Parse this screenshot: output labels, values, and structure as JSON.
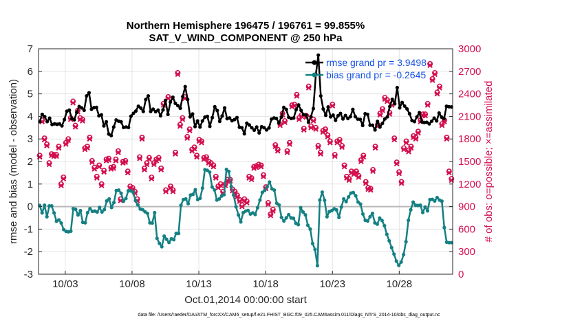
{
  "chart_data": {
    "type": "line",
    "title": "Northern Hemisphere 196475 / 196761 = 99.855%",
    "subtitle": "SAT_V_WIND_COMPONENT @ 250 hPa",
    "xlabel": "Oct.01,2014 00:00:00 start",
    "ylabel": "rmse and bias (model - observation)",
    "ylabel_right": "# of obs: o=possible; ×=assimilated",
    "footnote": "data file: /Users/raeder/DAI/ATM_forcXX/CAM6_setup/f.e21.FHIST_BGC.f09_025.CAM6assim.011/Diags_NTrS_2014-10/obs_diag_output.nc",
    "x_ticks": [
      "10/03",
      "10/08",
      "10/13",
      "10/18",
      "10/23",
      "10/28"
    ],
    "x_tick_days": [
      3,
      8,
      13,
      18,
      23,
      28
    ],
    "xlim": [
      1.0,
      32.0
    ],
    "ylim": [
      -3,
      7
    ],
    "y_ticks": [
      "-3",
      "-2",
      "-1",
      "0",
      "1",
      "2",
      "3",
      "4",
      "5",
      "6",
      "7"
    ],
    "ylim_right": [
      0,
      3000
    ],
    "y2_ticks": [
      "0",
      "300",
      "600",
      "900",
      "1200",
      "1500",
      "1800",
      "2100",
      "2400",
      "2700",
      "3000"
    ],
    "grid": true,
    "zero_line": 0,
    "legend_position": "top-right",
    "series": [
      {
        "name": "rmse grand pr = 3.9498",
        "color": "#000000",
        "marker": "circle",
        "values": [
          3.77,
          4.09,
          3.99,
          3.77,
          3.92,
          3.64,
          3.67,
          3.65,
          3.67,
          3.58,
          3.86,
          4.23,
          4.28,
          3.91,
          3.85,
          4.18,
          4.44,
          4.38,
          4.27,
          4.91,
          5.05,
          4.32,
          4.39,
          4.4,
          4.03,
          4.07,
          3.58,
          3.76,
          3.22,
          3.15,
          3.53,
          3.84,
          3.79,
          3.76,
          3.51,
          3.53,
          3.51,
          4.01,
          4.14,
          4.24,
          4.45,
          4.37,
          4.22,
          4.75,
          4.91,
          4.22,
          4.32,
          4.21,
          4.28,
          4.03,
          4.29,
          4.71,
          4.09,
          4.64,
          4.85,
          4.58,
          4.48,
          4.36,
          4.88,
          5.32,
          4.75,
          3.98,
          4.11,
          3.55,
          3.8,
          3.53,
          3.8,
          3.97,
          4.0,
          3.56,
          3.95,
          4.43,
          4.26,
          3.78,
          4.02,
          4.38,
          3.9,
          3.93,
          3.81,
          3.86,
          3.95,
          3.52,
          3.5,
          3.23,
          3.7,
          3.62,
          3.5,
          3.39,
          3.53,
          3.27,
          3.54,
          3.5,
          3.4,
          3.49,
          3.88,
          3.93,
          3.91,
          3.71,
          3.97,
          4.4,
          4.31,
          3.96,
          3.91,
          3.93,
          4.3,
          4.51,
          4.27,
          4.08,
          4.06,
          3.74,
          3.99,
          4.35,
          5.86,
          6.72,
          4.91,
          4.33,
          4.05,
          4.42,
          3.98,
          4.06,
          3.83,
          4.03,
          4.13,
          3.89,
          4.04,
          3.91,
          3.99,
          4.31,
          3.99,
          3.88,
          3.87,
          3.6,
          4.12,
          4.09,
          3.61,
          3.61,
          3.4,
          3.78,
          3.53,
          3.69,
          3.89,
          3.98,
          4.44,
          4.76,
          4.56,
          5.28,
          4.38,
          4.62,
          4.46,
          4.33,
          4.12,
          3.82,
          3.77,
          3.98,
          4.17,
          3.76,
          3.73,
          3.74,
          3.67,
          3.79,
          3.92,
          3.8,
          4.15,
          3.97,
          3.9,
          4.45,
          4.43,
          4.42
        ]
      },
      {
        "name": "bias grand pr = -0.2645",
        "color": "#148083",
        "marker": "circle",
        "values": [
          0.05,
          -0.28,
          0.06,
          -0.45,
          0.03,
          0.03,
          -0.28,
          -0.65,
          -0.59,
          -0.73,
          -1.02,
          -1.1,
          -1.12,
          -1.09,
          -0.09,
          -0.12,
          -0.37,
          -0.18,
          -0.7,
          -0.72,
          -0.27,
          -0.09,
          -0.21,
          -0.2,
          -0.24,
          -0.04,
          -0.24,
          -0.13,
          0.25,
          0.34,
          -0.04,
          0.18,
          0.71,
          0.73,
          0.59,
          0.24,
          0.36,
          0.7,
          0.7,
          0.64,
          0.27,
          0.08,
          -0.11,
          -0.14,
          -0.23,
          -0.3,
          -0.72,
          -0.73,
          -0.27,
          -1.41,
          -1.63,
          -1.78,
          -1.31,
          -1.45,
          -1.59,
          -1.43,
          -1.47,
          -1.19,
          -1.19,
          0.06,
          0.31,
          0.34,
          0.13,
          0.51,
          0.54,
          0.75,
          0.31,
          0.37,
          0.82,
          1.64,
          1.61,
          1.53,
          0.87,
          0.74,
          0.29,
          0.34,
          0.47,
          0.53,
          1.65,
          1.56,
          0.89,
          0.51,
          -0.01,
          -0.37,
          -0.68,
          -0.27,
          -0.2,
          -0.17,
          -0.33,
          -0.28,
          -0.35,
          -0.05,
          0.29,
          0.63,
          0.72,
          0.88,
          1.09,
          0.79,
          0.73,
          0.15,
          0.07,
          -0.48,
          -0.64,
          -0.5,
          -0.36,
          -0.5,
          -0.52,
          -0.74,
          -0.8,
          -0.05,
          -0.24,
          -0.37,
          -0.83,
          -1.0,
          -1.64,
          -1.9,
          -2.62,
          0.29,
          0.64,
          0.28,
          -0.45,
          -0.22,
          -0.18,
          -0.1,
          -0.15,
          -0.48,
          -0.02,
          0.34,
          0.22,
          0.43,
          0.6,
          0.62,
          0.48,
          0.2,
          0.11,
          -0.33,
          -0.61,
          -0.64,
          -0.45,
          -0.3,
          -0.72,
          -0.78,
          -0.51,
          -0.62,
          -0.85,
          -1.23,
          -1.52,
          -1.82,
          -2.11,
          -2.42,
          -2.61,
          -2.46,
          -2.13,
          -1.56,
          -0.61,
          -0.14,
          0.2,
          0.06,
          0.05,
          0.06,
          -0.26,
          -0.02,
          -0.19,
          0.31,
          0.32,
          0.25,
          0.4,
          0.29,
          0.24,
          -0.93,
          -1.58,
          -1.6,
          -1.6
        ]
      },
      {
        "name": "# obs possible",
        "color": "#d40f4e",
        "marker": "circle",
        "axis": "right",
        "values": [
          1580,
          2050,
          1810,
          1730,
          1480,
          1600,
          1590,
          1590,
          1700,
          1200,
          1290,
          1750,
          1800,
          2080,
          2300,
          1980,
          2180,
          2080,
          2060,
          1680,
          1700,
          1820,
          1510,
          1420,
          1300,
          1450,
          1200,
          1380,
          1530,
          1540,
          1420,
          1430,
          1530,
          1640,
          1000,
          1500,
          1510,
          1370,
          1170,
          1150,
          1100,
          1000,
          1560,
          1820,
          1410,
          1480,
          1550,
          1290,
          1480,
          1530,
          1550,
          1410,
          2270,
          1120,
          2360,
          1170,
          1120,
          1620,
          2680,
          1990,
          2080,
          2360,
          1830,
          1930,
          1660,
          1690,
          1580,
          1790,
          1770,
          1550,
          1560,
          1500,
          1480,
          1450,
          1300,
          1170,
          1200,
          1100,
          1200,
          1260,
          1260,
          1130,
          1100,
          1050,
          990,
          920,
          1000,
          970,
          1300,
          1280,
          1430,
          1440,
          1460,
          1450,
          1320,
          1160,
          950,
          800,
          860,
          1720,
          1660,
          2000,
          2140,
          2040,
          1640,
          1750,
          2250,
          2260,
          2390,
          2080,
          2120,
          1940,
          2110,
          2500,
          1970,
          2060,
          1950,
          1710,
          1620,
          1910,
          1930,
          1850,
          1770,
          2260,
          1590,
          1770,
          1790,
          1710,
          1450,
          1300,
          1270,
          1370,
          1350,
          1370,
          1310,
          1520,
          1580,
          1230,
          1150,
          1140,
          1390,
          1700,
          1990,
          2140,
          2200,
          2350,
          2320,
          2150,
          2270,
          1810,
          1490,
          1360,
          1230,
          1680,
          1770,
          1650,
          1700,
          1840,
          1820,
          1900,
          2050,
          2130,
          2130,
          2270,
          2800,
          2600,
          2680,
          2420,
          2500,
          2000,
          2050,
          1820,
          1370,
          1270
        ]
      },
      {
        "name": "# obs assimilated",
        "color": "#d40f4e",
        "marker": "x",
        "axis": "right",
        "values": [
          1560,
          2030,
          1790,
          1710,
          1460,
          1580,
          1570,
          1570,
          1680,
          1180,
          1270,
          1730,
          1780,
          2060,
          2280,
          1960,
          2160,
          2060,
          2040,
          1660,
          1680,
          1800,
          1490,
          1400,
          1280,
          1430,
          1180,
          1360,
          1510,
          1520,
          1400,
          1410,
          1510,
          1620,
          980,
          1480,
          1490,
          1350,
          1150,
          1130,
          1080,
          980,
          1540,
          1800,
          1390,
          1460,
          1530,
          1270,
          1460,
          1510,
          1530,
          1390,
          2250,
          1100,
          2340,
          1150,
          1100,
          1600,
          2660,
          1970,
          2060,
          2340,
          1810,
          1910,
          1640,
          1670,
          1560,
          1770,
          1750,
          1530,
          1540,
          1480,
          1460,
          1430,
          1280,
          1150,
          1180,
          1080,
          1180,
          1240,
          1240,
          1110,
          1080,
          1030,
          970,
          900,
          980,
          950,
          1280,
          1260,
          1410,
          1420,
          1440,
          1430,
          1300,
          1140,
          930,
          780,
          840,
          1700,
          1640,
          1980,
          2120,
          2020,
          1620,
          1730,
          2230,
          2240,
          2370,
          2060,
          2100,
          1920,
          2090,
          2480,
          1950,
          2040,
          1930,
          1690,
          1600,
          1890,
          1910,
          1830,
          1750,
          2240,
          1570,
          1750,
          1770,
          1690,
          1430,
          1280,
          1250,
          1350,
          1330,
          1350,
          1290,
          1500,
          1560,
          1210,
          1130,
          1120,
          1370,
          1680,
          1970,
          2120,
          2180,
          2330,
          2300,
          2130,
          2250,
          1790,
          1470,
          1340,
          1210,
          1660,
          1750,
          1630,
          1680,
          1820,
          1800,
          1880,
          2030,
          2110,
          2110,
          2250,
          2780,
          2580,
          2660,
          2400,
          2480,
          1980,
          2030,
          1800,
          1350,
          1250
        ]
      }
    ]
  }
}
